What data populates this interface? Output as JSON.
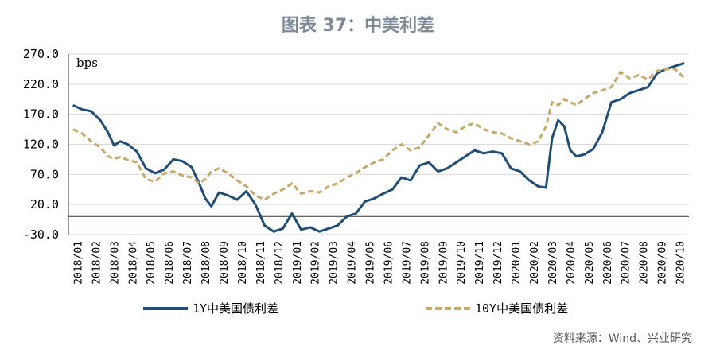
{
  "header": {
    "title": "图表 37：中美利差"
  },
  "footer": {
    "source": "资料来源：Wind、兴业研究"
  },
  "chart_data": {
    "type": "line",
    "title": "图表 37：中美利差",
    "unit_label": "bps",
    "ylim": [
      -30,
      270
    ],
    "y_ticks": [
      "270.0",
      "220.0",
      "170.0",
      "120.0",
      "70.0",
      "20.0",
      "-30.0"
    ],
    "categories": [
      "2018/01",
      "2018/02",
      "2018/03",
      "2018/04",
      "2018/05",
      "2018/06",
      "2018/07",
      "2018/08",
      "2018/09",
      "2018/10",
      "2018/11",
      "2018/12",
      "2019/01",
      "2019/02",
      "2019/03",
      "2019/04",
      "2019/05",
      "2019/06",
      "2019/07",
      "2019/08",
      "2019/09",
      "2019/10",
      "2019/11",
      "2019/12",
      "2020/01",
      "2020/02",
      "2020/03",
      "2020/04",
      "2020/05",
      "2020/06",
      "2020/07",
      "2020/08",
      "2020/09",
      "2020/10"
    ],
    "legend_position": "bottom",
    "grid": true,
    "series": [
      {
        "name": "1Y中美国债利差",
        "color": "#1f4e79",
        "style": "solid",
        "points": [
          [
            "2018/01",
            185
          ],
          [
            "2018/01",
            178
          ],
          [
            "2018/02",
            175
          ],
          [
            "2018/02",
            160
          ],
          [
            "2018/03",
            140
          ],
          [
            "2018/03",
            118
          ],
          [
            "2018/03",
            125
          ],
          [
            "2018/04",
            120
          ],
          [
            "2018/04",
            108
          ],
          [
            "2018/05",
            80
          ],
          [
            "2018/05",
            72
          ],
          [
            "2018/06",
            78
          ],
          [
            "2018/06",
            95
          ],
          [
            "2018/07",
            92
          ],
          [
            "2018/07",
            82
          ],
          [
            "2018/08",
            55
          ],
          [
            "2018/08",
            30
          ],
          [
            "2018/08",
            17
          ],
          [
            "2018/09",
            40
          ],
          [
            "2018/09",
            35
          ],
          [
            "2018/10",
            28
          ],
          [
            "2018/10",
            42
          ],
          [
            "2018/11",
            20
          ],
          [
            "2018/11",
            -15
          ],
          [
            "2018/12",
            -25
          ],
          [
            "2018/12",
            -20
          ],
          [
            "2019/01",
            5
          ],
          [
            "2019/01",
            -22
          ],
          [
            "2019/02",
            -18
          ],
          [
            "2019/02",
            -25
          ],
          [
            "2019/03",
            -20
          ],
          [
            "2019/03",
            -15
          ],
          [
            "2019/04",
            0
          ],
          [
            "2019/04",
            5
          ],
          [
            "2019/05",
            25
          ],
          [
            "2019/05",
            30
          ],
          [
            "2019/06",
            38
          ],
          [
            "2019/06",
            45
          ],
          [
            "2019/07",
            65
          ],
          [
            "2019/07",
            60
          ],
          [
            "2019/08",
            85
          ],
          [
            "2019/08",
            90
          ],
          [
            "2019/09",
            75
          ],
          [
            "2019/09",
            80
          ],
          [
            "2019/10",
            90
          ],
          [
            "2019/10",
            100
          ],
          [
            "2019/11",
            110
          ],
          [
            "2019/11",
            105
          ],
          [
            "2019/12",
            108
          ],
          [
            "2019/12",
            105
          ],
          [
            "2020/01",
            80
          ],
          [
            "2020/01",
            75
          ],
          [
            "2020/02",
            60
          ],
          [
            "2020/02",
            50
          ],
          [
            "2020/03",
            48
          ],
          [
            "2020/03",
            130
          ],
          [
            "2020/03",
            160
          ],
          [
            "2020/04",
            150
          ],
          [
            "2020/04",
            110
          ],
          [
            "2020/04",
            100
          ],
          [
            "2020/05",
            103
          ],
          [
            "2020/05",
            112
          ],
          [
            "2020/06",
            140
          ],
          [
            "2020/06",
            190
          ],
          [
            "2020/07",
            195
          ],
          [
            "2020/07",
            205
          ],
          [
            "2020/08",
            210
          ],
          [
            "2020/08",
            215
          ],
          [
            "2020/09",
            238
          ],
          [
            "2020/09",
            245
          ],
          [
            "2020/10",
            250
          ],
          [
            "2020/10",
            255
          ]
        ]
      },
      {
        "name": "10Y中美国债利差",
        "color": "#c9a86a",
        "style": "dashed",
        "points": [
          [
            "2018/01",
            145
          ],
          [
            "2018/01",
            138
          ],
          [
            "2018/02",
            125
          ],
          [
            "2018/02",
            115
          ],
          [
            "2018/03",
            100
          ],
          [
            "2018/03",
            96
          ],
          [
            "2018/03",
            99
          ],
          [
            "2018/04",
            94
          ],
          [
            "2018/04",
            90
          ],
          [
            "2018/05",
            62
          ],
          [
            "2018/05",
            58
          ],
          [
            "2018/06",
            72
          ],
          [
            "2018/06",
            75
          ],
          [
            "2018/07",
            68
          ],
          [
            "2018/07",
            65
          ],
          [
            "2018/08",
            55
          ],
          [
            "2018/08",
            62
          ],
          [
            "2018/08",
            75
          ],
          [
            "2018/09",
            80
          ],
          [
            "2018/09",
            72
          ],
          [
            "2018/10",
            60
          ],
          [
            "2018/10",
            50
          ],
          [
            "2018/11",
            35
          ],
          [
            "2018/11",
            28
          ],
          [
            "2018/12",
            38
          ],
          [
            "2018/12",
            45
          ],
          [
            "2019/01",
            55
          ],
          [
            "2019/01",
            38
          ],
          [
            "2019/02",
            42
          ],
          [
            "2019/02",
            40
          ],
          [
            "2019/03",
            50
          ],
          [
            "2019/03",
            55
          ],
          [
            "2019/04",
            65
          ],
          [
            "2019/04",
            72
          ],
          [
            "2019/05",
            82
          ],
          [
            "2019/05",
            90
          ],
          [
            "2019/06",
            95
          ],
          [
            "2019/06",
            110
          ],
          [
            "2019/07",
            120
          ],
          [
            "2019/07",
            110
          ],
          [
            "2019/08",
            115
          ],
          [
            "2019/08",
            135
          ],
          [
            "2019/09",
            155
          ],
          [
            "2019/09",
            145
          ],
          [
            "2019/10",
            140
          ],
          [
            "2019/10",
            150
          ],
          [
            "2019/11",
            155
          ],
          [
            "2019/11",
            145
          ],
          [
            "2019/12",
            140
          ],
          [
            "2019/12",
            138
          ],
          [
            "2020/01",
            130
          ],
          [
            "2020/01",
            125
          ],
          [
            "2020/02",
            120
          ],
          [
            "2020/02",
            125
          ],
          [
            "2020/03",
            150
          ],
          [
            "2020/03",
            190
          ],
          [
            "2020/03",
            185
          ],
          [
            "2020/04",
            195
          ],
          [
            "2020/04",
            190
          ],
          [
            "2020/04",
            185
          ],
          [
            "2020/05",
            195
          ],
          [
            "2020/05",
            205
          ],
          [
            "2020/06",
            210
          ],
          [
            "2020/06",
            215
          ],
          [
            "2020/07",
            240
          ],
          [
            "2020/07",
            230
          ],
          [
            "2020/08",
            235
          ],
          [
            "2020/08",
            228
          ],
          [
            "2020/09",
            242
          ],
          [
            "2020/09",
            245
          ],
          [
            "2020/10",
            245
          ],
          [
            "2020/10",
            230
          ]
        ]
      }
    ]
  }
}
